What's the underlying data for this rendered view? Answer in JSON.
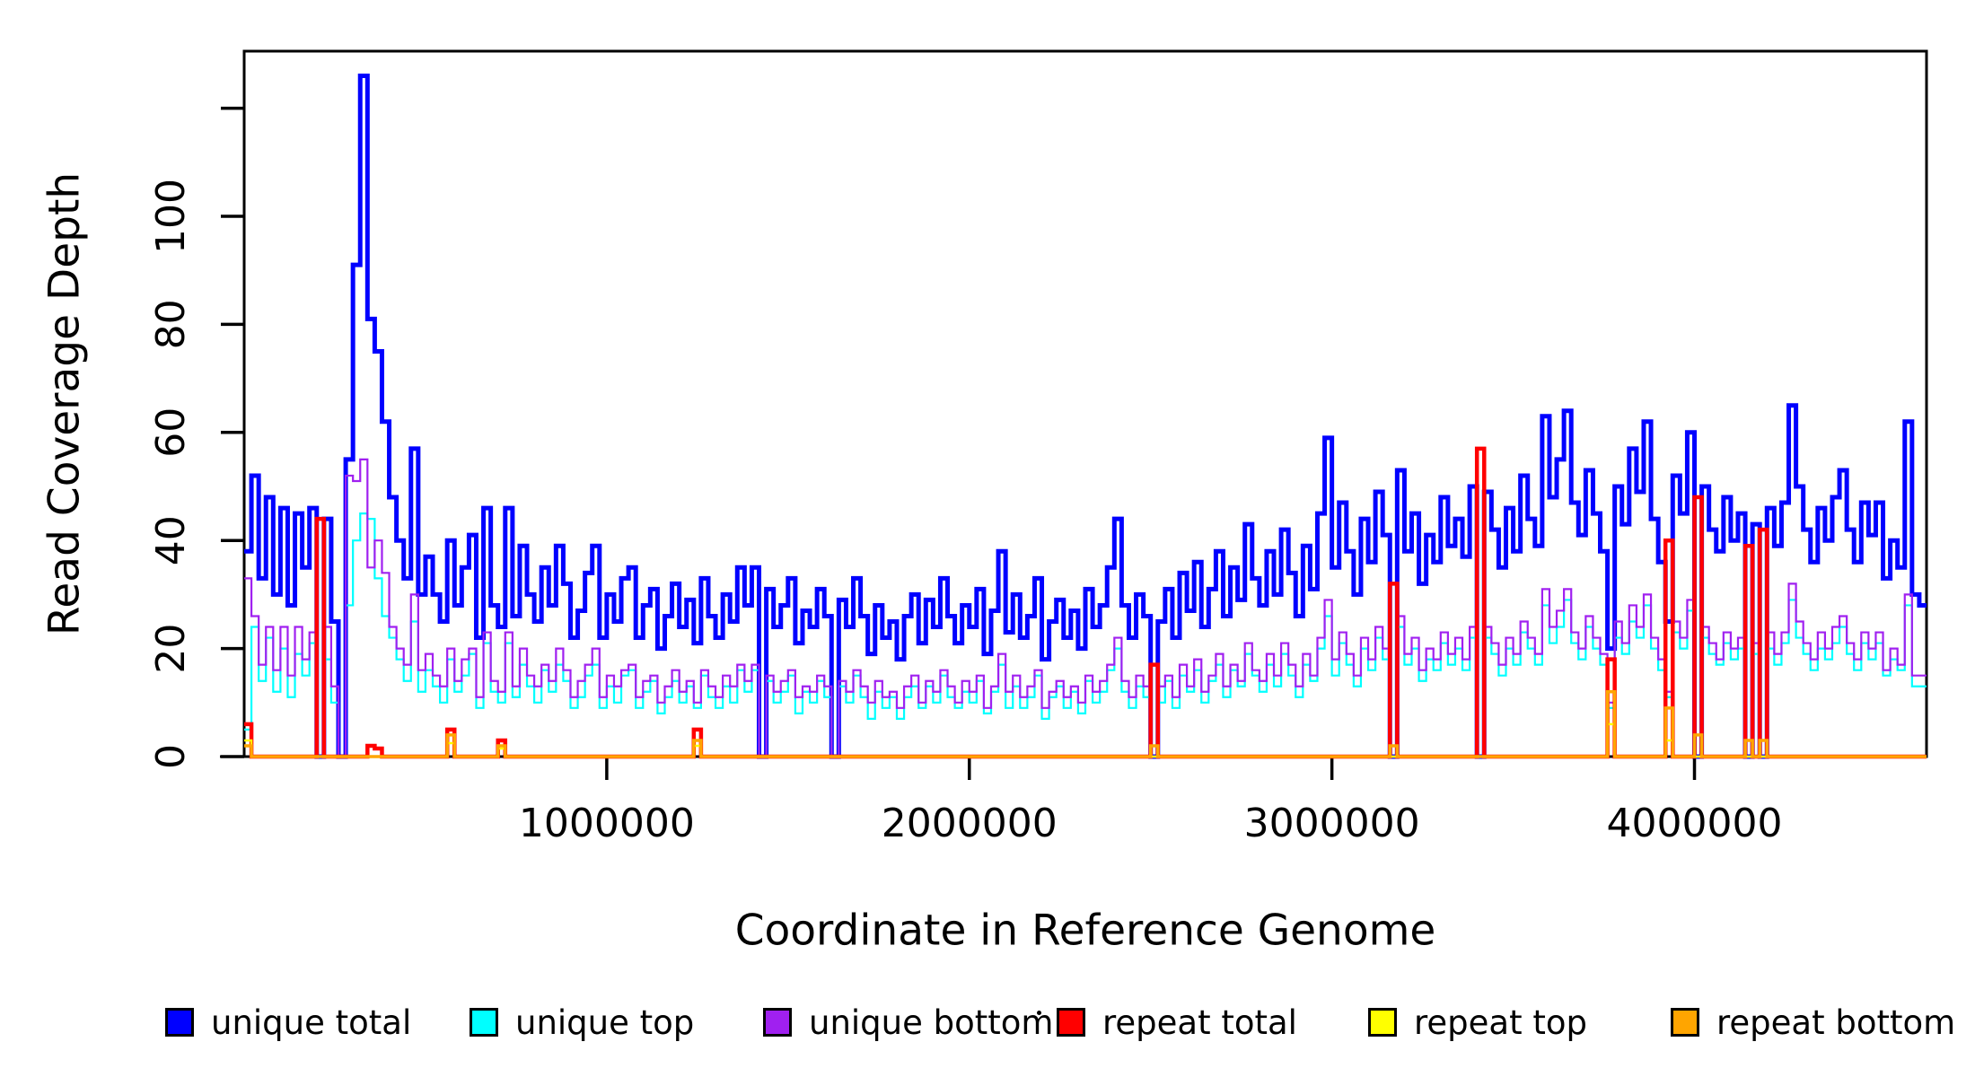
{
  "chart_data": {
    "type": "step-line",
    "title": "",
    "xlabel": "Coordinate in Reference Genome",
    "ylabel": "Read Coverage Depth",
    "x_ticks": [
      1000000,
      2000000,
      3000000,
      4000000
    ],
    "y_ticks": [
      0,
      20,
      40,
      60,
      80,
      100
    ],
    "y_extra_unlabeled_tick": 120,
    "xlim": [
      0,
      4640000
    ],
    "ylim": [
      0,
      130
    ],
    "grid": "off",
    "legend_position": "bottom-horizontal",
    "bin_size": 20000,
    "n_bins": 232,
    "series": [
      {
        "name": "unique total",
        "color": "#0000FF",
        "line_width": 5,
        "values": [
          38,
          52,
          33,
          48,
          30,
          46,
          28,
          45,
          35,
          46,
          0,
          44,
          25,
          0,
          55,
          91,
          126,
          81,
          75,
          62,
          48,
          40,
          33,
          57,
          30,
          37,
          30,
          25,
          40,
          28,
          35,
          41,
          22,
          46,
          28,
          24,
          46,
          26,
          39,
          30,
          25,
          35,
          28,
          39,
          32,
          22,
          27,
          34,
          39,
          22,
          30,
          25,
          33,
          35,
          22,
          28,
          31,
          20,
          26,
          32,
          24,
          29,
          21,
          33,
          26,
          22,
          30,
          25,
          35,
          28,
          35,
          0,
          31,
          24,
          28,
          33,
          21,
          27,
          24,
          31,
          26,
          0,
          29,
          24,
          33,
          26,
          19,
          28,
          22,
          25,
          18,
          26,
          30,
          21,
          29,
          24,
          33,
          26,
          21,
          28,
          24,
          31,
          19,
          27,
          38,
          23,
          30,
          22,
          26,
          33,
          18,
          25,
          29,
          22,
          27,
          20,
          31,
          24,
          28,
          35,
          44,
          28,
          22,
          30,
          26,
          0,
          25,
          31,
          22,
          34,
          27,
          36,
          24,
          31,
          38,
          26,
          35,
          29,
          43,
          33,
          28,
          38,
          30,
          42,
          34,
          26,
          39,
          31,
          45,
          59,
          35,
          47,
          38,
          30,
          44,
          36,
          49,
          41,
          0,
          53,
          38,
          45,
          32,
          41,
          36,
          48,
          39,
          44,
          37,
          50,
          0,
          49,
          42,
          35,
          46,
          38,
          52,
          44,
          39,
          63,
          48,
          55,
          64,
          47,
          41,
          53,
          45,
          38,
          20,
          50,
          43,
          57,
          49,
          62,
          44,
          36,
          25,
          52,
          45,
          60,
          0,
          50,
          42,
          38,
          48,
          40,
          45,
          0,
          43,
          0,
          46,
          39,
          47,
          65,
          50,
          42,
          36,
          46,
          40,
          48,
          53,
          42,
          36,
          47,
          41,
          47,
          33,
          40,
          35,
          62,
          30,
          28
        ]
      },
      {
        "name": "unique top",
        "color": "#00FFFF",
        "line_width": 2.2,
        "values": [
          5,
          24,
          14,
          22,
          12,
          20,
          11,
          19,
          15,
          21,
          0,
          18,
          10,
          0,
          28,
          40,
          45,
          44,
          33,
          26,
          22,
          18,
          14,
          25,
          12,
          16,
          13,
          10,
          18,
          12,
          15,
          19,
          9,
          21,
          12,
          10,
          21,
          11,
          17,
          13,
          10,
          16,
          12,
          17,
          14,
          9,
          11,
          15,
          17,
          9,
          13,
          10,
          15,
          16,
          9,
          12,
          14,
          8,
          11,
          14,
          10,
          13,
          9,
          15,
          11,
          9,
          13,
          10,
          16,
          12,
          16,
          0,
          14,
          10,
          12,
          15,
          8,
          12,
          10,
          14,
          11,
          0,
          13,
          10,
          15,
          11,
          7,
          12,
          9,
          11,
          7,
          11,
          13,
          9,
          13,
          10,
          15,
          11,
          9,
          12,
          10,
          14,
          8,
          12,
          17,
          9,
          13,
          9,
          11,
          15,
          7,
          11,
          13,
          9,
          12,
          8,
          14,
          10,
          12,
          16,
          20,
          12,
          9,
          13,
          11,
          0,
          10,
          14,
          9,
          15,
          12,
          16,
          10,
          14,
          17,
          11,
          16,
          13,
          19,
          15,
          12,
          17,
          13,
          19,
          15,
          11,
          17,
          14,
          20,
          26,
          15,
          21,
          17,
          13,
          20,
          16,
          22,
          18,
          0,
          24,
          17,
          20,
          14,
          18,
          16,
          21,
          17,
          20,
          16,
          22,
          0,
          22,
          19,
          15,
          20,
          17,
          23,
          20,
          17,
          28,
          21,
          24,
          29,
          21,
          18,
          24,
          20,
          17,
          9,
          22,
          19,
          25,
          22,
          28,
          20,
          16,
          11,
          23,
          20,
          27,
          0,
          22,
          19,
          17,
          21,
          18,
          20,
          0,
          19,
          0,
          20,
          17,
          21,
          29,
          22,
          19,
          16,
          20,
          18,
          21,
          24,
          19,
          16,
          21,
          18,
          21,
          15,
          18,
          16,
          28,
          13,
          13
        ]
      },
      {
        "name": "unique bottom",
        "color": "#A020F0",
        "line_width": 2.2,
        "values": [
          33,
          26,
          17,
          24,
          16,
          24,
          15,
          24,
          18,
          23,
          0,
          24,
          13,
          0,
          52,
          51,
          55,
          35,
          40,
          34,
          24,
          20,
          17,
          30,
          16,
          19,
          15,
          13,
          20,
          14,
          18,
          20,
          11,
          23,
          14,
          12,
          23,
          13,
          20,
          15,
          13,
          17,
          14,
          20,
          16,
          11,
          14,
          17,
          20,
          11,
          15,
          13,
          16,
          17,
          11,
          14,
          15,
          10,
          13,
          16,
          12,
          14,
          10,
          16,
          13,
          11,
          15,
          13,
          17,
          14,
          17,
          0,
          15,
          12,
          14,
          16,
          11,
          13,
          12,
          15,
          13,
          0,
          14,
          12,
          16,
          13,
          10,
          14,
          11,
          12,
          9,
          13,
          15,
          10,
          14,
          12,
          16,
          13,
          10,
          14,
          12,
          15,
          9,
          13,
          19,
          12,
          15,
          11,
          13,
          16,
          9,
          12,
          14,
          11,
          13,
          10,
          15,
          12,
          14,
          17,
          22,
          14,
          11,
          15,
          13,
          0,
          13,
          15,
          11,
          17,
          13,
          18,
          12,
          15,
          19,
          13,
          17,
          14,
          21,
          16,
          14,
          19,
          15,
          21,
          17,
          13,
          19,
          15,
          22,
          29,
          18,
          23,
          19,
          15,
          22,
          18,
          24,
          20,
          0,
          26,
          19,
          22,
          16,
          20,
          18,
          23,
          19,
          22,
          18,
          24,
          0,
          24,
          21,
          17,
          22,
          19,
          25,
          22,
          19,
          31,
          24,
          27,
          31,
          23,
          20,
          26,
          22,
          19,
          10,
          25,
          21,
          28,
          24,
          30,
          22,
          18,
          12,
          25,
          22,
          29,
          0,
          24,
          21,
          18,
          23,
          20,
          22,
          0,
          21,
          0,
          23,
          19,
          23,
          32,
          25,
          21,
          18,
          23,
          20,
          24,
          26,
          21,
          18,
          23,
          20,
          23,
          16,
          20,
          17,
          30,
          15,
          15
        ]
      },
      {
        "name": "repeat total",
        "color": "#FF0000",
        "line_width": 4.5,
        "baseline": 0,
        "spikes": {
          "0": 6,
          "10": 44,
          "17": 2,
          "18": 1.5,
          "28": 5,
          "35": 3,
          "62": 5,
          "125": 17,
          "158": 32,
          "170": 57,
          "188": 18,
          "196": 40,
          "200": 48,
          "207": 39,
          "209": 42
        }
      },
      {
        "name": "repeat top",
        "color": "#FFFF00",
        "line_width": 2.5,
        "baseline": 0,
        "spikes": {
          "0": 3,
          "28": 2.5,
          "35": 1.5,
          "62": 2,
          "188": 6,
          "196": 3
        }
      },
      {
        "name": "repeat bottom",
        "color": "#FFA500",
        "line_width": 3.5,
        "baseline": 0,
        "spikes": {
          "0": 2,
          "28": 4,
          "35": 2,
          "62": 3,
          "125": 2,
          "158": 2,
          "188": 12,
          "196": 9,
          "200": 4,
          "207": 3,
          "209": 3
        }
      }
    ]
  }
}
